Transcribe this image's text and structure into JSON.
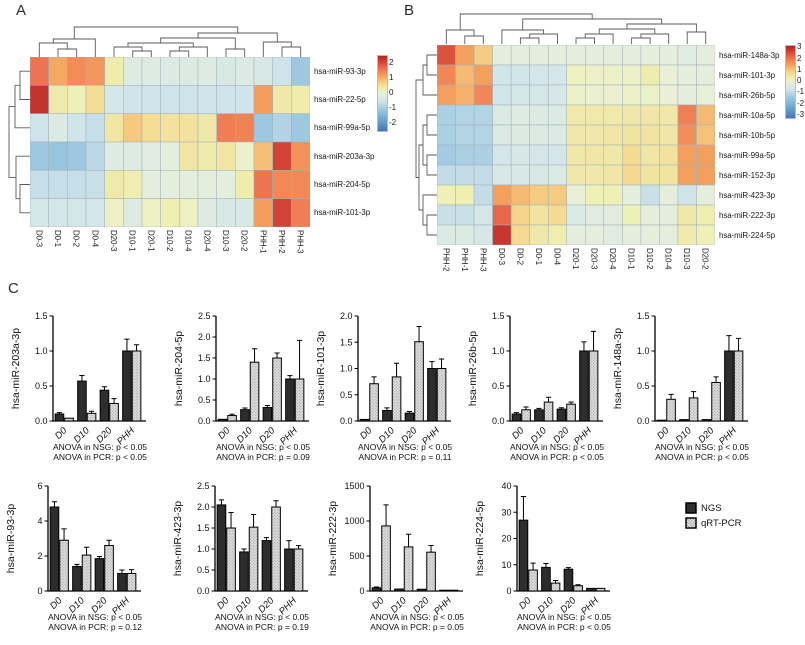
{
  "panels": {
    "a_label": "A",
    "b_label": "B",
    "c_label": "C"
  },
  "chart_data": [
    {
      "id": "heatmap-a",
      "type": "heatmap",
      "colorbar_ticks": [
        2,
        1,
        0,
        -1,
        -2
      ],
      "value_range": [
        -2.5,
        2.5
      ],
      "columns": [
        "D0-3",
        "D0-1",
        "D0-2",
        "D0-4",
        "D20-3",
        "D10-1",
        "D20-1",
        "D10-2",
        "D10-4",
        "D20-4",
        "D10-3",
        "D20-2",
        "PHH-1",
        "PHH-2",
        "PHH-3"
      ],
      "rows": [
        "hsa-miR-93-3p",
        "hsa-miR-22-5p",
        "hsa-miR-99a-5p",
        "hsa-miR-203a-3p",
        "hsa-miR-204-5p",
        "hsa-miR-101-3p"
      ],
      "values": [
        [
          1.6,
          1.1,
          1.35,
          1.25,
          0.3,
          -0.2,
          -0.2,
          -0.25,
          -0.25,
          -0.2,
          -0.3,
          -0.25,
          -0.3,
          -0.5,
          -1.0
        ],
        [
          2.3,
          0.35,
          0.15,
          0.6,
          -0.4,
          -0.45,
          -0.45,
          -0.5,
          -0.5,
          -0.45,
          -0.5,
          -0.45,
          1.2,
          0.4,
          0.3
        ],
        [
          -0.5,
          -0.25,
          -0.45,
          -0.6,
          0.45,
          0.8,
          0.6,
          0.5,
          0.5,
          0.4,
          1.5,
          1.45,
          -1.0,
          -0.8,
          -1.0
        ],
        [
          -1.0,
          -1.1,
          -1.0,
          -0.7,
          -0.2,
          -0.2,
          -0.15,
          -0.1,
          0.45,
          0.35,
          0.45,
          0.05,
          0.9,
          2.1,
          1.3
        ],
        [
          -0.6,
          -0.6,
          -0.6,
          -0.55,
          0.35,
          0.25,
          -0.1,
          -0.1,
          -0.1,
          -0.1,
          -0.1,
          0.3,
          1.6,
          1.4,
          1.4
        ],
        [
          -0.4,
          -0.4,
          -0.4,
          -0.4,
          0.1,
          -0.2,
          0.1,
          0.2,
          0.1,
          -0.2,
          -0.3,
          -0.3,
          1.2,
          2.1,
          1.5
        ]
      ]
    },
    {
      "id": "heatmap-b",
      "type": "heatmap",
      "colorbar_ticks": [
        3,
        2,
        1,
        0,
        -1,
        -2,
        -3
      ],
      "value_range": [
        -3.2,
        3.2
      ],
      "columns": [
        "PHH-2",
        "PHH-1",
        "PHH-3",
        "D0-3",
        "D0-2",
        "D0-1",
        "D0-4",
        "D20-1",
        "D20-3",
        "D20-4",
        "D10-1",
        "D10-2",
        "D10-4",
        "D10-3",
        "D20-2"
      ],
      "rows": [
        "hsa-miR-148a-3p",
        "hsa-miR-101-3p",
        "hsa-miR-26b-5p",
        "hsa-miR-10a-5p",
        "hsa-miR-10b-5p",
        "hsa-miR-99a-5p",
        "hsa-miR-152-3p",
        "hsa-miR-423-3p",
        "hsa-miR-222-3p",
        "hsa-miR-224-5p"
      ],
      "values": [
        [
          2.5,
          1.5,
          1.0,
          -0.1,
          -0.1,
          -0.1,
          -0.1,
          -0.1,
          -0.1,
          -0.1,
          -0.1,
          -0.1,
          -0.1,
          -0.2,
          -0.1
        ],
        [
          1.8,
          1.2,
          1.5,
          -0.55,
          -0.55,
          -0.5,
          -0.5,
          0.15,
          0.1,
          0.1,
          0.1,
          0.35,
          0.0,
          -0.1,
          -0.1
        ],
        [
          1.5,
          1.3,
          1.8,
          -0.55,
          -0.5,
          -0.5,
          -0.45,
          0.1,
          0.05,
          0.05,
          0.1,
          0.1,
          0.0,
          -0.1,
          0.0
        ],
        [
          -1.1,
          -1.0,
          -1.0,
          -0.3,
          -0.25,
          -0.3,
          -0.3,
          0.45,
          0.45,
          0.45,
          0.5,
          0.55,
          0.5,
          1.9,
          1.2
        ],
        [
          -1.1,
          -1.0,
          -1.0,
          -0.3,
          -0.3,
          -0.3,
          -0.3,
          0.5,
          0.5,
          0.55,
          0.6,
          0.6,
          0.55,
          1.7,
          1.1
        ],
        [
          -1.2,
          -1.1,
          -1.1,
          -0.5,
          -0.45,
          -0.5,
          -0.5,
          0.5,
          0.55,
          0.5,
          0.8,
          0.55,
          0.65,
          1.5,
          1.5
        ],
        [
          -0.8,
          -0.8,
          -0.8,
          -0.4,
          -0.4,
          -0.4,
          -0.35,
          0.5,
          0.5,
          0.55,
          0.85,
          0.6,
          0.6,
          1.5,
          1.5
        ],
        [
          0.2,
          0.25,
          -0.8,
          1.5,
          1.2,
          1.0,
          1.0,
          0.0,
          0.2,
          0.2,
          -0.1,
          -0.7,
          -0.1,
          -0.6,
          -0.1
        ],
        [
          -0.7,
          -0.7,
          -0.5,
          2.2,
          0.9,
          0.6,
          0.8,
          -0.3,
          -0.2,
          -0.2,
          0.2,
          -0.1,
          -0.1,
          0.5,
          0.3
        ],
        [
          -0.3,
          -0.3,
          -0.45,
          2.9,
          0.8,
          0.5,
          0.3,
          -0.1,
          -0.1,
          -0.2,
          -0.1,
          -0.1,
          -0.1,
          0.4,
          0.2
        ]
      ]
    },
    {
      "id": "bar-panel",
      "type": "bar",
      "categories": [
        "D0",
        "D10",
        "D20",
        "PHH"
      ],
      "legend": [
        "NGS",
        "qRT-PCR"
      ],
      "charts": [
        {
          "ylabel": "hsa-miR-203a-3p",
          "ymax": 1.5,
          "yticks": [
            "0.0",
            "0.5",
            "1.0",
            "1.5"
          ],
          "ngs": [
            0.1,
            0.57,
            0.44,
            1.0
          ],
          "ngs_err": [
            0.02,
            0.08,
            0.05,
            0.17
          ],
          "pcr": [
            0.04,
            0.11,
            0.25,
            1.0
          ],
          "pcr_err": [
            0.01,
            0.03,
            0.07,
            0.09
          ],
          "anova_line1": "ANOVA in NSG: p < 0.05",
          "anova_line2": "ANOVA in PCR: p < 0.05"
        },
        {
          "ylabel": "hsa-miR-204-5p",
          "ymax": 2.5,
          "yticks": [
            "0.0",
            "0.5",
            "1.0",
            "1.5",
            "2.0",
            "2.5"
          ],
          "ngs": [
            0.04,
            0.27,
            0.32,
            1.0
          ],
          "ngs_err": [
            0.01,
            0.04,
            0.05,
            0.08
          ],
          "pcr": [
            0.13,
            1.4,
            1.5,
            1.0
          ],
          "pcr_err": [
            0.03,
            0.32,
            0.12,
            0.92
          ],
          "anova_line1": "ANOVA in NSG: p < 0.05",
          "anova_line2": "ANOVA in PCR: p = 0.09"
        },
        {
          "ylabel": "hsa-miR-101-3p",
          "ymax": 2.0,
          "yticks": [
            "0.0",
            "0.5",
            "1.0",
            "1.5",
            "2.0"
          ],
          "ngs": [
            0.03,
            0.2,
            0.15,
            1.0
          ],
          "ngs_err": [
            0.01,
            0.05,
            0.03,
            0.13
          ],
          "pcr": [
            0.71,
            0.84,
            1.51,
            1.0
          ],
          "pcr_err": [
            0.13,
            0.26,
            0.29,
            0.18
          ],
          "anova_line1": "ANOVA in NSG: p < 0.05",
          "anova_line2": "ANOVA in PCR: p = 0.11"
        },
        {
          "ylabel": "hsa-miR-26b-5p",
          "ymax": 1.5,
          "yticks": [
            "0.0",
            "0.5",
            "1.0",
            "1.5"
          ],
          "ngs": [
            0.1,
            0.16,
            0.17,
            1.0
          ],
          "ngs_err": [
            0.02,
            0.02,
            0.02,
            0.13
          ],
          "pcr": [
            0.16,
            0.27,
            0.24,
            1.0
          ],
          "pcr_err": [
            0.04,
            0.07,
            0.03,
            0.28
          ],
          "anova_line1": "ANOVA in NSG: p < 0.05",
          "anova_line2": "ANOVA in PCR: p < 0.05"
        },
        {
          "ylabel": "hsa-miR-148a-3p",
          "ymax": 1.5,
          "yticks": [
            "0.0",
            "0.5",
            "1.0",
            "1.5"
          ],
          "ngs": [
            0.01,
            0.02,
            0.02,
            1.0
          ],
          "ngs_err": [
            0.01,
            0.01,
            0.01,
            0.22
          ],
          "pcr": [
            0.31,
            0.33,
            0.55,
            1.0
          ],
          "pcr_err": [
            0.07,
            0.09,
            0.08,
            0.18
          ],
          "anova_line1": "ANOVA in NSG: p < 0.05",
          "anova_line2": "ANOVA in PCR: p < 0.05"
        },
        {
          "ylabel": "hsa-miR-93-3p",
          "ymax": 6,
          "yticks": [
            "0",
            "2",
            "4",
            "6"
          ],
          "ngs": [
            4.8,
            1.4,
            1.85,
            1.0
          ],
          "ngs_err": [
            0.3,
            0.12,
            0.12,
            0.2
          ],
          "pcr": [
            2.9,
            2.05,
            2.6,
            1.0
          ],
          "pcr_err": [
            0.65,
            0.45,
            0.3,
            0.22
          ],
          "anova_line1": "ANOVA in NSG: p < 0.05",
          "anova_line2": "ANOVA in PCR: p = 0.12"
        },
        {
          "ylabel": "hsa-miR-423-3p",
          "ymax": 2.5,
          "yticks": [
            "0.0",
            "0.5",
            "1.0",
            "1.5",
            "2.0",
            "2.5"
          ],
          "ngs": [
            2.05,
            0.93,
            1.2,
            1.0
          ],
          "ngs_err": [
            0.12,
            0.07,
            0.07,
            0.2
          ],
          "pcr": [
            1.5,
            1.52,
            2.0,
            1.0
          ],
          "pcr_err": [
            0.37,
            0.3,
            0.15,
            0.08
          ],
          "anova_line1": "ANOVA in NSG: p < 0.05",
          "anova_line2": "ANOVA in PCR: p = 0.19"
        },
        {
          "ylabel": "hsa-miR-222-3p",
          "ymax": 1500,
          "yticks": [
            "0",
            "500",
            "1000",
            "1500"
          ],
          "ngs": [
            45,
            28,
            25,
            2
          ],
          "ngs_err": [
            12,
            6,
            5,
            1
          ],
          "pcr": [
            930,
            630,
            555,
            2
          ],
          "pcr_err": [
            300,
            180,
            95,
            1
          ],
          "anova_line1": "ANOVA in NSG: p < 0.05",
          "anova_line2": "ANOVA in PCR: p = 0.05"
        },
        {
          "ylabel": "hsa-miR-224-5p",
          "ymax": 40,
          "yticks": [
            "0",
            "10",
            "20",
            "30",
            "40"
          ],
          "ngs": [
            27,
            9,
            8.3,
            1
          ],
          "ngs_err": [
            9,
            1.5,
            0.6,
            0.2
          ],
          "pcr": [
            8,
            3,
            2,
            1
          ],
          "pcr_err": [
            2.6,
            1,
            0.4,
            0.3
          ],
          "anova_line1": "ANOVA in NSG: p < 0.05",
          "anova_line2": "ANOVA in PCR: p < 0.05"
        }
      ]
    }
  ]
}
